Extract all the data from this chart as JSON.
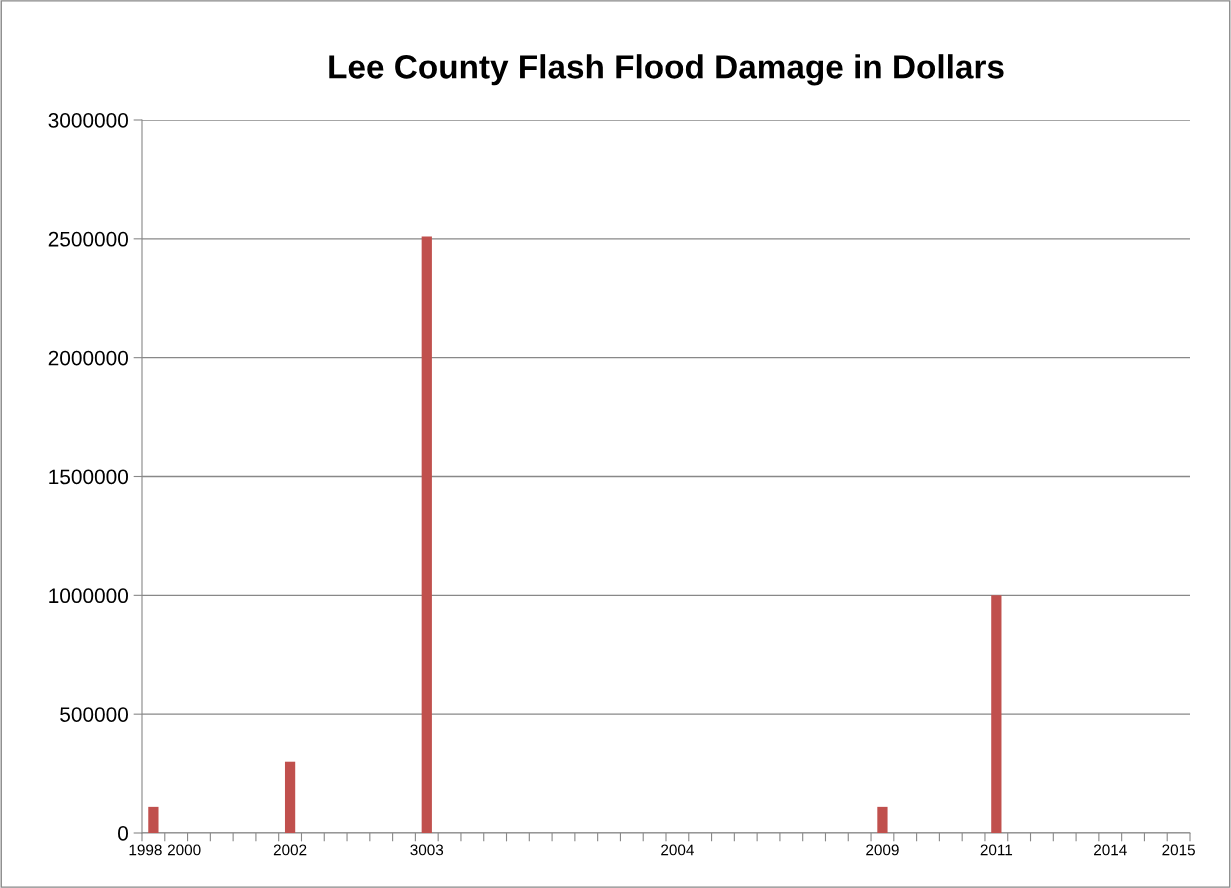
{
  "chart_data": {
    "type": "bar",
    "title": "Lee County Flash Flood Damage in Dollars",
    "categories": [
      "1998",
      "2000",
      null,
      null,
      null,
      null,
      "2002",
      null,
      null,
      null,
      null,
      null,
      "3003",
      null,
      null,
      null,
      null,
      null,
      null,
      null,
      null,
      null,
      null,
      "2004",
      null,
      null,
      null,
      null,
      null,
      null,
      null,
      null,
      "2009",
      null,
      null,
      null,
      null,
      "2011",
      null,
      null,
      null,
      null,
      "2014",
      null,
      null,
      "2015"
    ],
    "values": [
      110000,
      0,
      0,
      0,
      0,
      0,
      300000,
      0,
      0,
      0,
      0,
      0,
      2510000,
      0,
      0,
      0,
      0,
      0,
      0,
      0,
      0,
      0,
      0,
      0,
      0,
      0,
      0,
      0,
      0,
      0,
      0,
      0,
      110000,
      0,
      0,
      0,
      0,
      1000000,
      0,
      0,
      0,
      0,
      0,
      0,
      0,
      0
    ],
    "color": "#c0504d",
    "ylim": [
      0,
      3000000
    ],
    "yticks": [
      0,
      500000,
      1000000,
      1500000,
      2000000,
      2500000,
      3000000
    ],
    "grid": "y"
  }
}
